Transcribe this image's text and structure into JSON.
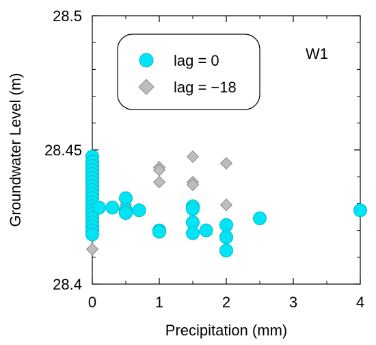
{
  "chart_data": {
    "type": "scatter",
    "panel_label": "W1",
    "xlabel": "Precipitation (mm)",
    "ylabel": "Groundwater Level (m)",
    "xlim": [
      0,
      4
    ],
    "ylim": [
      28.4,
      28.5
    ],
    "xticks": [
      0,
      1,
      2,
      3,
      4
    ],
    "yticks": [
      28.4,
      28.45,
      28.5
    ],
    "xtick_labels": [
      "0",
      "1",
      "2",
      "3",
      "4"
    ],
    "ytick_labels": [
      "28.4",
      "28.45",
      "28.5"
    ],
    "legend": {
      "position": "top-left"
    },
    "series": [
      {
        "name": "lag = 0",
        "marker": "circle",
        "color": "#00e5f5",
        "points": [
          [
            0,
            28.4475
          ],
          [
            0,
            28.4455
          ],
          [
            0,
            28.444
          ],
          [
            0,
            28.4425
          ],
          [
            0,
            28.441
          ],
          [
            0,
            28.4395
          ],
          [
            0,
            28.438
          ],
          [
            0,
            28.4365
          ],
          [
            0,
            28.435
          ],
          [
            0,
            28.4335
          ],
          [
            0,
            28.432
          ],
          [
            0,
            28.4305
          ],
          [
            0,
            28.429
          ],
          [
            0,
            28.4275
          ],
          [
            0,
            28.426
          ],
          [
            0,
            28.4245
          ],
          [
            0,
            28.423
          ],
          [
            0,
            28.4215
          ],
          [
            0,
            28.42
          ],
          [
            0,
            28.4185
          ],
          [
            0.1,
            28.4285
          ],
          [
            0.3,
            28.4285
          ],
          [
            0.5,
            28.432
          ],
          [
            0.5,
            28.4275
          ],
          [
            0.5,
            28.4265
          ],
          [
            0.7,
            28.4275
          ],
          [
            1,
            28.42
          ],
          [
            1,
            28.4195
          ],
          [
            1.5,
            28.429
          ],
          [
            1.5,
            28.428
          ],
          [
            1.5,
            28.423
          ],
          [
            1.5,
            28.419
          ],
          [
            1.7,
            28.42
          ],
          [
            2,
            28.422
          ],
          [
            2,
            28.4175
          ],
          [
            2,
            28.4125
          ],
          [
            2.5,
            28.4245
          ],
          [
            4,
            28.4275
          ]
        ]
      },
      {
        "name": "lag = −18",
        "marker": "diamond",
        "color": "#bdbdbd",
        "points": [
          [
            0,
            28.429
          ],
          [
            0,
            28.428
          ],
          [
            0,
            28.427
          ],
          [
            0,
            28.426
          ],
          [
            0,
            28.425
          ],
          [
            0,
            28.424
          ],
          [
            0,
            28.423
          ],
          [
            0,
            28.422
          ],
          [
            0,
            28.421
          ],
          [
            0,
            28.42
          ],
          [
            0,
            28.4195
          ],
          [
            0,
            28.4185
          ],
          [
            0,
            28.413
          ],
          [
            0.5,
            28.4295
          ],
          [
            0.5,
            28.4285
          ],
          [
            0.5,
            28.4275
          ],
          [
            1,
            28.4435
          ],
          [
            1,
            28.4425
          ],
          [
            1,
            28.438
          ],
          [
            1.5,
            28.4475
          ],
          [
            1.5,
            28.438
          ],
          [
            1.5,
            28.437
          ],
          [
            2,
            28.445
          ],
          [
            2,
            28.4295
          ],
          [
            4,
            28.4275
          ]
        ]
      }
    ]
  }
}
